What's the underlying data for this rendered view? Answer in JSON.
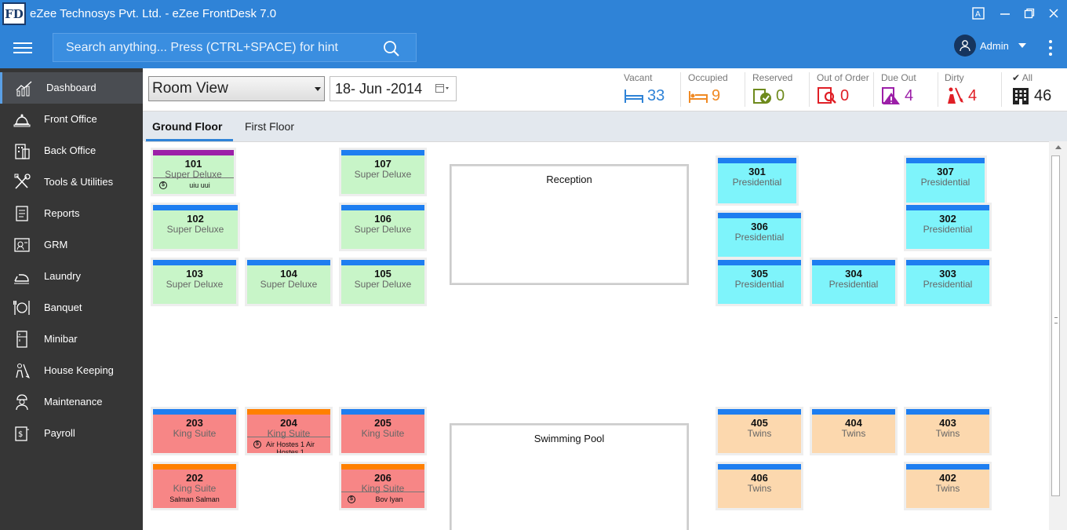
{
  "window": {
    "logo_text": "FD",
    "title": "eZee Technosys Pvt. Ltd. - eZee FrontDesk 7.0"
  },
  "header": {
    "search_placeholder": "Search anything... Press (CTRL+SPACE) for hint",
    "user_name": "Admin"
  },
  "sidebar": {
    "items": [
      {
        "label": "Dashboard",
        "icon": "dashboard-chart-icon",
        "active": true
      },
      {
        "label": "Front Office",
        "icon": "front-office-bell-icon"
      },
      {
        "label": "Back Office",
        "icon": "back-office-building-icon"
      },
      {
        "label": "Tools & Utilities",
        "icon": "tools-icon"
      },
      {
        "label": "Reports",
        "icon": "reports-icon"
      },
      {
        "label": "GRM",
        "icon": "grm-icon"
      },
      {
        "label": "Laundry",
        "icon": "laundry-iron-icon"
      },
      {
        "label": "Banquet",
        "icon": "banquet-cutlery-icon"
      },
      {
        "label": "Minibar",
        "icon": "minibar-fridge-icon"
      },
      {
        "label": "House Keeping",
        "icon": "housekeeping-icon"
      },
      {
        "label": "Maintenance",
        "icon": "maintenance-worker-icon"
      },
      {
        "label": "Payroll",
        "icon": "payroll-icon"
      }
    ]
  },
  "toolbar": {
    "view_value": "Room View",
    "date_value": "18- Jun -2014"
  },
  "stats": [
    {
      "label": "Vacant",
      "value": "33",
      "color": "#2f83d7",
      "icon": "bed-icon"
    },
    {
      "label": "Occupied",
      "value": "9",
      "color": "#f08a24",
      "icon": "occupied-bed-icon"
    },
    {
      "label": "Reserved",
      "value": "0",
      "color": "#6e8a1c",
      "icon": "reserved-icon"
    },
    {
      "label": "Out of Order",
      "value": "0",
      "color": "#e01f26",
      "icon": "out-of-order-icon"
    },
    {
      "label": "Due Out",
      "value": "4",
      "color": "#9c1fa8",
      "icon": "due-out-icon"
    },
    {
      "label": "Dirty",
      "value": "4",
      "color": "#e01f26",
      "icon": "dirty-icon"
    },
    {
      "label": "All",
      "value": "46",
      "color": "#222222",
      "icon": "building-icon"
    }
  ],
  "floors": {
    "tabs": [
      "Ground Floor",
      "First Floor"
    ],
    "active": "Ground Floor"
  },
  "areas": {
    "reception": "Reception",
    "pool": "Swimming Pool"
  },
  "colors": {
    "super_deluxe": "#c8f5c8",
    "presidential": "#7ef4fb",
    "king_suite": "#f78686",
    "twins": "#fcd8ae",
    "strip_vacant": "#1e7ef0",
    "strip_due_out": "#9c1fa8",
    "strip_occupied": "#ff8000"
  },
  "rooms": [
    {
      "number": "101",
      "type": "Super Deluxe",
      "guest": "uiu uui",
      "flag": "$",
      "status": "due_out"
    },
    {
      "number": "107",
      "type": "Super Deluxe",
      "status": "vacant"
    },
    {
      "number": "102",
      "type": "Super Deluxe",
      "status": "vacant"
    },
    {
      "number": "106",
      "type": "Super Deluxe",
      "status": "vacant"
    },
    {
      "number": "103",
      "type": "Super Deluxe",
      "status": "vacant"
    },
    {
      "number": "104",
      "type": "Super Deluxe",
      "status": "vacant"
    },
    {
      "number": "105",
      "type": "Super Deluxe",
      "status": "vacant"
    },
    {
      "number": "301",
      "type": "Presidential",
      "status": "vacant"
    },
    {
      "number": "307",
      "type": "Presidential",
      "status": "vacant"
    },
    {
      "number": "306",
      "type": "Presidential",
      "status": "vacant"
    },
    {
      "number": "302",
      "type": "Presidential",
      "status": "vacant"
    },
    {
      "number": "305",
      "type": "Presidential",
      "status": "vacant"
    },
    {
      "number": "304",
      "type": "Presidential",
      "status": "vacant"
    },
    {
      "number": "303",
      "type": "Presidential",
      "status": "vacant"
    },
    {
      "number": "203",
      "type": "King Suite",
      "status": "vacant"
    },
    {
      "number": "204",
      "type": "King Suite",
      "guest": "Air Hostes 1 Air Hostes 1",
      "flag": "$",
      "status": "occupied"
    },
    {
      "number": "205",
      "type": "King Suite",
      "status": "vacant"
    },
    {
      "number": "202",
      "type": "King Suite",
      "guest": "Salman Salman",
      "status": "occupied"
    },
    {
      "number": "206",
      "type": "King Suite",
      "guest": "Bov Iyan",
      "flag": "$",
      "status": "occupied"
    },
    {
      "number": "405",
      "type": "Twins",
      "status": "vacant"
    },
    {
      "number": "404",
      "type": "Twins",
      "status": "vacant"
    },
    {
      "number": "403",
      "type": "Twins",
      "status": "vacant"
    },
    {
      "number": "406",
      "type": "Twins",
      "status": "vacant"
    },
    {
      "number": "402",
      "type": "Twins",
      "status": "vacant"
    }
  ]
}
